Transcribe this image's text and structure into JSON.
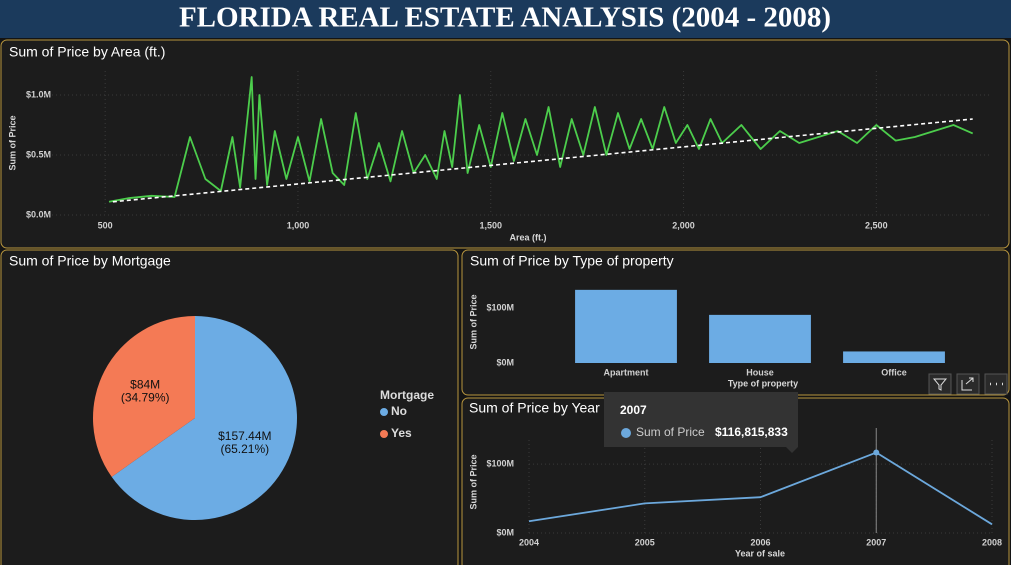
{
  "header": {
    "title": "FLORIDA REAL ESTATE ANALYSIS (2004 - 2008)"
  },
  "chart_data": [
    {
      "type": "line",
      "title": "Sum of Price by Area (ft.)",
      "xlabel": "Area (ft.)",
      "ylabel": "Sum of Price",
      "xlim": [
        331,
        2800
      ],
      "ylim": [
        0,
        1200000
      ],
      "xticks": [
        500,
        {
          "value": 1000,
          "label": "1,000"
        },
        {
          "value": 1500,
          "label": "1,500"
        },
        {
          "value": 2000,
          "label": "2,000"
        },
        {
          "value": 2500,
          "label": "2,500"
        }
      ],
      "yticks": [
        {
          "value": 0,
          "label": "$0.0M"
        },
        {
          "value": 500000,
          "label": "$0.5M"
        },
        {
          "value": 1000000,
          "label": "$1.0M"
        }
      ],
      "grid": true,
      "series": [
        {
          "color": "#4ccd4c",
          "x": [
            510,
            560,
            620,
            680,
            720,
            760,
            800,
            830,
            850,
            880,
            890,
            900,
            920,
            940,
            970,
            1000,
            1030,
            1060,
            1090,
            1120,
            1150,
            1180,
            1210,
            1240,
            1270,
            1300,
            1330,
            1360,
            1380,
            1400,
            1420,
            1440,
            1470,
            1500,
            1530,
            1560,
            1590,
            1620,
            1650,
            1680,
            1710,
            1740,
            1770,
            1800,
            1830,
            1860,
            1890,
            1920,
            1950,
            1980,
            2010,
            2040,
            2070,
            2100,
            2150,
            2200,
            2250,
            2300,
            2350,
            2400,
            2450,
            2500,
            2550,
            2600,
            2650,
            2700,
            2750
          ],
          "values": [
            110000,
            140000,
            160000,
            150000,
            650000,
            300000,
            200000,
            650000,
            230000,
            1150000,
            300000,
            1000000,
            250000,
            700000,
            300000,
            650000,
            280000,
            800000,
            350000,
            250000,
            850000,
            300000,
            600000,
            280000,
            700000,
            350000,
            500000,
            300000,
            700000,
            400000,
            1000000,
            350000,
            750000,
            400000,
            850000,
            450000,
            800000,
            500000,
            900000,
            400000,
            800000,
            500000,
            900000,
            500000,
            850000,
            550000,
            800000,
            550000,
            900000,
            600000,
            750000,
            550000,
            800000,
            600000,
            750000,
            550000,
            700000,
            600000,
            650000,
            700000,
            600000,
            750000,
            620000,
            650000,
            700000,
            750000,
            680000
          ]
        },
        {
          "color": "#ffffff",
          "dashed": true,
          "x": [
            520,
            2750
          ],
          "values": [
            110000,
            800000
          ]
        }
      ]
    },
    {
      "type": "pie",
      "title": "Sum of Price by Mortgage",
      "legend_title": "Mortgage",
      "categories": [
        "No",
        "Yes"
      ],
      "values": [
        157.44,
        84
      ],
      "value_labels": [
        "$157.44M",
        "$84M"
      ],
      "percents": [
        65.21,
        34.79
      ],
      "percent_labels": [
        "(65.21%)",
        "(34.79%)"
      ],
      "colors": [
        "#6cace4",
        "#f47a55"
      ]
    },
    {
      "type": "bar",
      "title": "Sum of Price by Type of property",
      "xlabel": "Type of property",
      "ylabel": "Sum of Price",
      "categories": [
        "Apartment",
        "House",
        "Office"
      ],
      "values": [
        133,
        87.5,
        21
      ],
      "color": "#6cace4",
      "ylim": [
        0,
        150
      ],
      "yticks": [
        {
          "value": 0,
          "label": "$0M"
        },
        {
          "value": 100,
          "label": "$100M"
        }
      ]
    },
    {
      "type": "line",
      "title": "Sum of Price by Year",
      "xlabel": "Year of sale",
      "ylabel": "Sum of Price",
      "xlim": [
        2004,
        2008
      ],
      "xticks": [
        2004,
        2005,
        2006,
        2007,
        2008
      ],
      "ylim": [
        0,
        135
      ],
      "yticks": [
        {
          "value": 0,
          "label": "$0M"
        },
        {
          "value": 100,
          "label": "$100M"
        }
      ],
      "grid": true,
      "series": [
        {
          "name": "Sum of Price",
          "color": "#6ca8dc",
          "x": [
            2004,
            2005,
            2006,
            2007,
            2008
          ],
          "values": [
            17,
            43,
            52,
            116.815833,
            12.62
          ]
        }
      ],
      "tooltip": {
        "value": 116815833,
        "value_label": "$116,815,833"
      }
    }
  ]
}
